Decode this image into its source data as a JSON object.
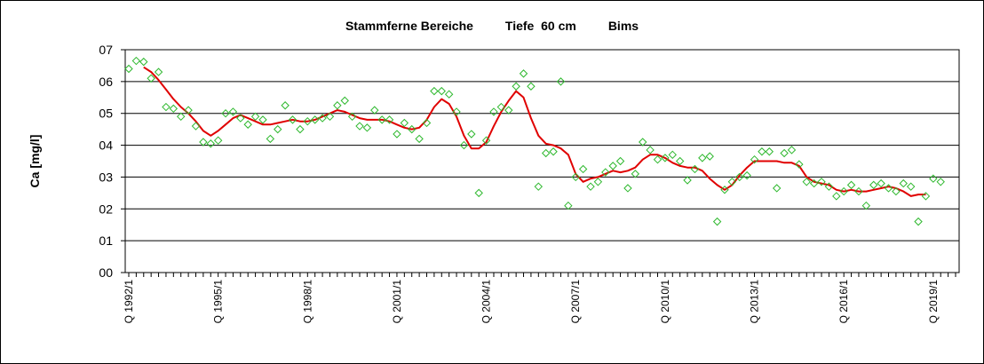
{
  "chart_data": {
    "type": "line",
    "title_parts": [
      "Stammferne Bereiche",
      "Tiefe  60 cm",
      "Bims"
    ],
    "ylabel": "Ca [mg/l]",
    "xlabel": "",
    "ylim": [
      0,
      7
    ],
    "yticks": [
      "00",
      "01",
      "02",
      "03",
      "04",
      "05",
      "06",
      "07"
    ],
    "grid": true,
    "legend": "none",
    "x_tick_labels": [
      "Q 1992/1",
      "Q 1995/1",
      "Q 1998/1",
      "Q 2001/1",
      "Q 2004/1",
      "Q 2007/1",
      "Q 2010/1",
      "Q 2013/1",
      "Q 2016/1",
      "Q 2019/1"
    ],
    "x_tick_positions": [
      0,
      12,
      24,
      36,
      48,
      60,
      72,
      84,
      96,
      108
    ],
    "x_range": [
      0,
      111
    ],
    "colors": {
      "points": "#2db82d",
      "trend": "#e00000",
      "grid": "#000000"
    },
    "series": [
      {
        "kind": "scatter",
        "points": [
          [
            0,
            6.4
          ],
          [
            1,
            6.65
          ],
          [
            2,
            6.62
          ],
          [
            3,
            6.1
          ],
          [
            4,
            6.3
          ],
          [
            5,
            5.2
          ],
          [
            6,
            5.15
          ],
          [
            7,
            4.9
          ],
          [
            8,
            5.1
          ],
          [
            9,
            4.6
          ],
          [
            10,
            4.1
          ],
          [
            11,
            4.05
          ],
          [
            12,
            4.15
          ],
          [
            13,
            5.0
          ],
          [
            14,
            5.05
          ],
          [
            15,
            4.85
          ],
          [
            16,
            4.65
          ],
          [
            17,
            4.9
          ],
          [
            18,
            4.8
          ],
          [
            19,
            4.2
          ],
          [
            20,
            4.5
          ],
          [
            21,
            5.25
          ],
          [
            22,
            4.8
          ],
          [
            23,
            4.5
          ],
          [
            24,
            4.75
          ],
          [
            25,
            4.8
          ],
          [
            26,
            4.85
          ],
          [
            27,
            4.9
          ],
          [
            28,
            5.25
          ],
          [
            29,
            5.4
          ],
          [
            30,
            4.9
          ],
          [
            31,
            4.6
          ],
          [
            32,
            4.55
          ],
          [
            33,
            5.1
          ],
          [
            34,
            4.8
          ],
          [
            35,
            4.8
          ],
          [
            36,
            4.35
          ],
          [
            37,
            4.7
          ],
          [
            38,
            4.5
          ],
          [
            39,
            4.2
          ],
          [
            40,
            4.7
          ],
          [
            41,
            5.7
          ],
          [
            42,
            5.7
          ],
          [
            43,
            5.6
          ],
          [
            44,
            5.05
          ],
          [
            45,
            4.0
          ],
          [
            46,
            4.35
          ],
          [
            47,
            2.5
          ],
          [
            48,
            4.15
          ],
          [
            49,
            5.05
          ],
          [
            50,
            5.2
          ],
          [
            51,
            5.1
          ],
          [
            52,
            5.85
          ],
          [
            53,
            6.25
          ],
          [
            54,
            5.85
          ],
          [
            55,
            2.7
          ],
          [
            56,
            3.75
          ],
          [
            57,
            3.8
          ],
          [
            58,
            6.0
          ],
          [
            59,
            2.1
          ],
          [
            60,
            3.0
          ],
          [
            61,
            3.25
          ],
          [
            62,
            2.7
          ],
          [
            63,
            2.85
          ],
          [
            64,
            3.15
          ],
          [
            65,
            3.35
          ],
          [
            66,
            3.5
          ],
          [
            67,
            2.65
          ],
          [
            68,
            3.1
          ],
          [
            69,
            4.1
          ],
          [
            70,
            3.85
          ],
          [
            71,
            3.55
          ],
          [
            72,
            3.6
          ],
          [
            73,
            3.7
          ],
          [
            74,
            3.5
          ],
          [
            75,
            2.9
          ],
          [
            76,
            3.25
          ],
          [
            77,
            3.6
          ],
          [
            78,
            3.65
          ],
          [
            79,
            1.6
          ],
          [
            80,
            2.6
          ],
          [
            81,
            2.85
          ],
          [
            82,
            3.0
          ],
          [
            83,
            3.05
          ],
          [
            84,
            3.55
          ],
          [
            85,
            3.8
          ],
          [
            86,
            3.8
          ],
          [
            87,
            2.65
          ],
          [
            88,
            3.75
          ],
          [
            89,
            3.85
          ],
          [
            90,
            3.4
          ],
          [
            91,
            2.85
          ],
          [
            92,
            2.8
          ],
          [
            93,
            2.85
          ],
          [
            94,
            2.7
          ],
          [
            95,
            2.4
          ],
          [
            96,
            2.55
          ],
          [
            97,
            2.75
          ],
          [
            98,
            2.55
          ],
          [
            99,
            2.1
          ],
          [
            100,
            2.75
          ],
          [
            101,
            2.8
          ],
          [
            102,
            2.65
          ],
          [
            103,
            2.55
          ],
          [
            104,
            2.8
          ],
          [
            105,
            2.7
          ],
          [
            106,
            1.6
          ],
          [
            107,
            2.4
          ],
          [
            108,
            2.95
          ],
          [
            109,
            2.85
          ]
        ]
      },
      {
        "kind": "line",
        "points": [
          [
            2,
            6.45
          ],
          [
            3,
            6.3
          ],
          [
            4,
            6.05
          ],
          [
            5,
            5.75
          ],
          [
            6,
            5.45
          ],
          [
            7,
            5.2
          ],
          [
            8,
            5.0
          ],
          [
            9,
            4.75
          ],
          [
            10,
            4.45
          ],
          [
            11,
            4.3
          ],
          [
            12,
            4.45
          ],
          [
            13,
            4.65
          ],
          [
            14,
            4.85
          ],
          [
            15,
            4.95
          ],
          [
            16,
            4.85
          ],
          [
            17,
            4.75
          ],
          [
            18,
            4.65
          ],
          [
            19,
            4.65
          ],
          [
            20,
            4.7
          ],
          [
            21,
            4.75
          ],
          [
            22,
            4.8
          ],
          [
            23,
            4.75
          ],
          [
            24,
            4.75
          ],
          [
            25,
            4.8
          ],
          [
            26,
            4.9
          ],
          [
            27,
            5.0
          ],
          [
            28,
            5.1
          ],
          [
            29,
            5.05
          ],
          [
            30,
            4.95
          ],
          [
            31,
            4.85
          ],
          [
            32,
            4.8
          ],
          [
            33,
            4.8
          ],
          [
            34,
            4.8
          ],
          [
            35,
            4.75
          ],
          [
            36,
            4.65
          ],
          [
            37,
            4.55
          ],
          [
            38,
            4.5
          ],
          [
            39,
            4.55
          ],
          [
            40,
            4.8
          ],
          [
            41,
            5.2
          ],
          [
            42,
            5.45
          ],
          [
            43,
            5.3
          ],
          [
            44,
            4.9
          ],
          [
            45,
            4.3
          ],
          [
            46,
            3.9
          ],
          [
            47,
            3.9
          ],
          [
            48,
            4.1
          ],
          [
            49,
            4.6
          ],
          [
            50,
            5.05
          ],
          [
            51,
            5.4
          ],
          [
            52,
            5.7
          ],
          [
            53,
            5.5
          ],
          [
            54,
            4.85
          ],
          [
            55,
            4.3
          ],
          [
            56,
            4.05
          ],
          [
            57,
            4.0
          ],
          [
            58,
            3.9
          ],
          [
            59,
            3.7
          ],
          [
            60,
            3.1
          ],
          [
            61,
            2.85
          ],
          [
            62,
            2.95
          ],
          [
            63,
            3.0
          ],
          [
            64,
            3.1
          ],
          [
            65,
            3.2
          ],
          [
            66,
            3.15
          ],
          [
            67,
            3.2
          ],
          [
            68,
            3.3
          ],
          [
            69,
            3.55
          ],
          [
            70,
            3.7
          ],
          [
            71,
            3.7
          ],
          [
            72,
            3.6
          ],
          [
            73,
            3.45
          ],
          [
            74,
            3.35
          ],
          [
            75,
            3.3
          ],
          [
            76,
            3.3
          ],
          [
            77,
            3.2
          ],
          [
            78,
            2.95
          ],
          [
            79,
            2.75
          ],
          [
            80,
            2.6
          ],
          [
            81,
            2.75
          ],
          [
            82,
            3.05
          ],
          [
            83,
            3.3
          ],
          [
            84,
            3.5
          ],
          [
            85,
            3.5
          ],
          [
            86,
            3.5
          ],
          [
            87,
            3.5
          ],
          [
            88,
            3.45
          ],
          [
            89,
            3.45
          ],
          [
            90,
            3.35
          ],
          [
            91,
            3.0
          ],
          [
            92,
            2.85
          ],
          [
            93,
            2.8
          ],
          [
            94,
            2.75
          ],
          [
            95,
            2.6
          ],
          [
            96,
            2.55
          ],
          [
            97,
            2.6
          ],
          [
            98,
            2.55
          ],
          [
            99,
            2.55
          ],
          [
            100,
            2.6
          ],
          [
            101,
            2.65
          ],
          [
            102,
            2.7
          ],
          [
            103,
            2.65
          ],
          [
            104,
            2.55
          ],
          [
            105,
            2.4
          ],
          [
            106,
            2.45
          ],
          [
            107,
            2.45
          ]
        ]
      }
    ]
  }
}
